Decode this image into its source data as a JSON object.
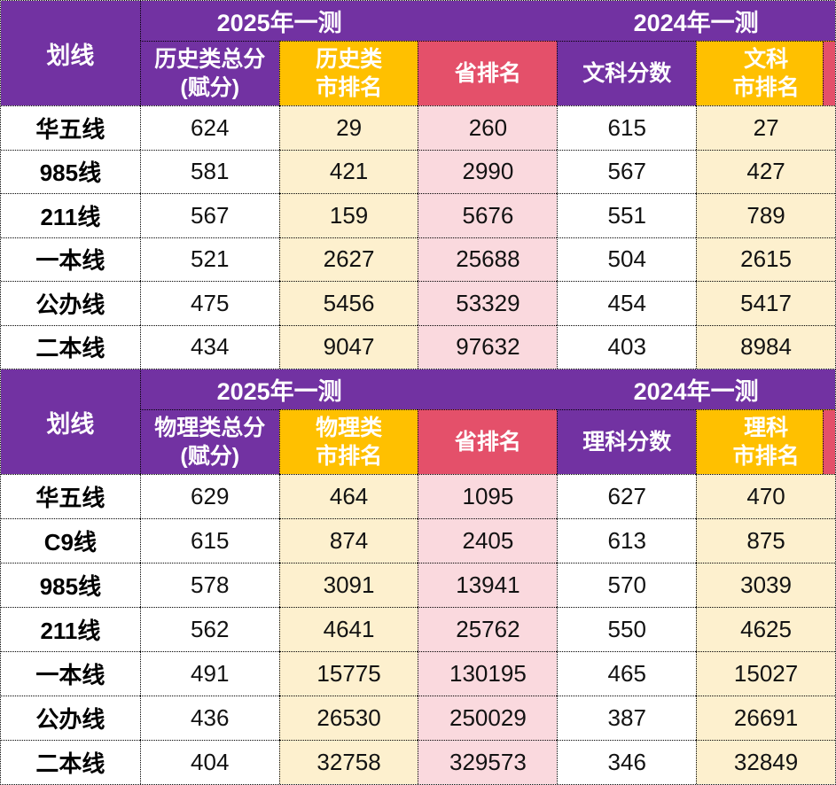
{
  "page": {
    "background": "#ffffff"
  },
  "colors": {
    "purple": "#7232A2",
    "gold": "#FFC000",
    "red": "#E4506A",
    "pink": "#FAD9DE",
    "cream": "#FDF0CE",
    "header_text": "#FFFFFF",
    "body_text": "#121212",
    "border": "#000000"
  },
  "value_column_backgrounds": [
    "white",
    "cream",
    "pink",
    "white",
    "cream"
  ],
  "tables": [
    {
      "corner_label": "划线",
      "year_spans": [
        {
          "label": "2025年一测"
        },
        {
          "label": "2024年一测"
        }
      ],
      "columns": [
        {
          "lines": [
            "历史类总分",
            "(赋分)"
          ],
          "bg": "purple"
        },
        {
          "lines": [
            "历史类",
            "市排名"
          ],
          "bg": "gold"
        },
        {
          "lines": [
            "省排名"
          ],
          "bg": "red"
        },
        {
          "lines": [
            "文科分数"
          ],
          "bg": "purple"
        },
        {
          "lines": [
            "文科",
            "市排名"
          ],
          "bg": "gold",
          "edge_strip": true
        }
      ],
      "rows": [
        {
          "label": "华五线",
          "values": [
            "624",
            "29",
            "260",
            "615",
            "27"
          ]
        },
        {
          "label": "985线",
          "values": [
            "581",
            "421",
            "2990",
            "567",
            "427"
          ]
        },
        {
          "label": "211线",
          "values": [
            "567",
            "159",
            "5676",
            "551",
            "789"
          ]
        },
        {
          "label": "一本线",
          "values": [
            "521",
            "2627",
            "25688",
            "504",
            "2615"
          ]
        },
        {
          "label": "公办线",
          "values": [
            "475",
            "5456",
            "53329",
            "454",
            "5417"
          ]
        },
        {
          "label": "二本线",
          "values": [
            "434",
            "9047",
            "97632",
            "403",
            "8984"
          ]
        }
      ]
    },
    {
      "corner_label": "划线",
      "year_spans": [
        {
          "label": "2025年一测"
        },
        {
          "label": "2024年一测"
        }
      ],
      "columns": [
        {
          "lines": [
            "物理类总分",
            "(赋分)"
          ],
          "bg": "purple"
        },
        {
          "lines": [
            "物理类",
            "市排名"
          ],
          "bg": "gold"
        },
        {
          "lines": [
            "省排名"
          ],
          "bg": "red"
        },
        {
          "lines": [
            "理科分数"
          ],
          "bg": "purple"
        },
        {
          "lines": [
            "理科",
            "市排名"
          ],
          "bg": "gold",
          "edge_strip": true
        }
      ],
      "rows": [
        {
          "label": "华五线",
          "values": [
            "629",
            "464",
            "1095",
            "627",
            "470"
          ]
        },
        {
          "label": "C9线",
          "values": [
            "615",
            "874",
            "2405",
            "613",
            "875"
          ]
        },
        {
          "label": "985线",
          "values": [
            "578",
            "3091",
            "13941",
            "570",
            "3039"
          ]
        },
        {
          "label": "211线",
          "values": [
            "562",
            "4641",
            "25762",
            "550",
            "4625"
          ]
        },
        {
          "label": "一本线",
          "values": [
            "491",
            "15775",
            "130195",
            "465",
            "15027"
          ]
        },
        {
          "label": "公办线",
          "values": [
            "436",
            "26530",
            "250029",
            "387",
            "26691"
          ]
        },
        {
          "label": "二本线",
          "values": [
            "404",
            "32758",
            "329573",
            "346",
            "32849"
          ]
        }
      ]
    }
  ]
}
